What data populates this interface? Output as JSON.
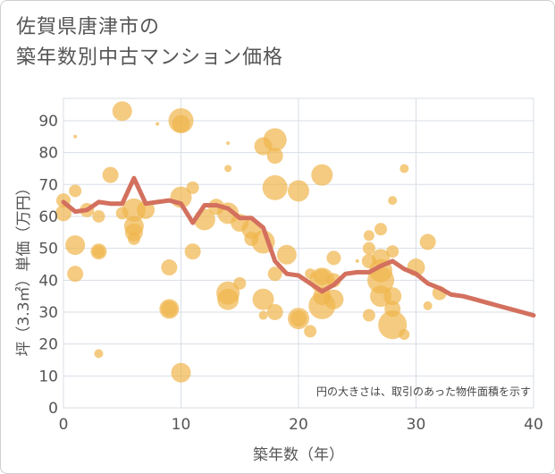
{
  "header": {
    "title_line1": "佐賀県唐津市の",
    "title_line2": "築年数別中古マンション価格"
  },
  "chart_data": {
    "type": "scatter",
    "title": "佐賀県唐津市の築年数別中古マンション価格",
    "xlabel": "築年数（年）",
    "ylabel": "坪（3.3㎡）単価（万円）",
    "xlim": [
      0,
      40
    ],
    "ylim": [
      0,
      97
    ],
    "xticks": [
      0,
      10,
      20,
      30,
      40
    ],
    "yticks": [
      0,
      10,
      20,
      30,
      40,
      50,
      60,
      70,
      80,
      90
    ],
    "grid": true,
    "note": "円の大きさは、取引のあった物件面積を示す",
    "colors": {
      "bubble": "#f0b54c",
      "trend": "#d3705e",
      "grid": "#d8dde6"
    },
    "bubbles": [
      {
        "x": 0,
        "y": 65,
        "s": 8
      },
      {
        "x": 0,
        "y": 61,
        "s": 9
      },
      {
        "x": 1,
        "y": 68,
        "s": 7
      },
      {
        "x": 1,
        "y": 51,
        "s": 11
      },
      {
        "x": 1,
        "y": 42,
        "s": 9
      },
      {
        "x": 1,
        "y": 85,
        "s": 2
      },
      {
        "x": 2,
        "y": 62,
        "s": 8
      },
      {
        "x": 3,
        "y": 60,
        "s": 7
      },
      {
        "x": 3,
        "y": 49,
        "s": 9
      },
      {
        "x": 3,
        "y": 49,
        "s": 7
      },
      {
        "x": 3,
        "y": 17,
        "s": 5
      },
      {
        "x": 4,
        "y": 73,
        "s": 9
      },
      {
        "x": 5,
        "y": 93,
        "s": 11
      },
      {
        "x": 5,
        "y": 61,
        "s": 7
      },
      {
        "x": 6,
        "y": 62,
        "s": 13
      },
      {
        "x": 6,
        "y": 57,
        "s": 11
      },
      {
        "x": 6,
        "y": 55,
        "s": 10
      },
      {
        "x": 6,
        "y": 53,
        "s": 7
      },
      {
        "x": 7,
        "y": 62,
        "s": 10
      },
      {
        "x": 8,
        "y": 89,
        "s": 2
      },
      {
        "x": 9,
        "y": 44,
        "s": 9
      },
      {
        "x": 9,
        "y": 31,
        "s": 11
      },
      {
        "x": 9,
        "y": 31,
        "s": 9
      },
      {
        "x": 10,
        "y": 90,
        "s": 14
      },
      {
        "x": 10,
        "y": 89,
        "s": 10
      },
      {
        "x": 10,
        "y": 66,
        "s": 12
      },
      {
        "x": 10,
        "y": 11,
        "s": 11
      },
      {
        "x": 11,
        "y": 69,
        "s": 7
      },
      {
        "x": 11,
        "y": 49,
        "s": 9
      },
      {
        "x": 12,
        "y": 59,
        "s": 12
      },
      {
        "x": 13,
        "y": 63,
        "s": 9
      },
      {
        "x": 14,
        "y": 83,
        "s": 2
      },
      {
        "x": 14,
        "y": 75,
        "s": 4
      },
      {
        "x": 14,
        "y": 61,
        "s": 12
      },
      {
        "x": 14,
        "y": 36,
        "s": 13
      },
      {
        "x": 14,
        "y": 34,
        "s": 12
      },
      {
        "x": 15,
        "y": 58,
        "s": 10
      },
      {
        "x": 15,
        "y": 39,
        "s": 7
      },
      {
        "x": 16,
        "y": 56,
        "s": 11
      },
      {
        "x": 16,
        "y": 53,
        "s": 8
      },
      {
        "x": 17,
        "y": 82,
        "s": 10
      },
      {
        "x": 17,
        "y": 52,
        "s": 13
      },
      {
        "x": 17,
        "y": 34,
        "s": 12
      },
      {
        "x": 17,
        "y": 29,
        "s": 5
      },
      {
        "x": 18,
        "y": 84,
        "s": 13
      },
      {
        "x": 18,
        "y": 79,
        "s": 9
      },
      {
        "x": 18,
        "y": 69,
        "s": 14
      },
      {
        "x": 18,
        "y": 42,
        "s": 8
      },
      {
        "x": 18,
        "y": 30,
        "s": 9
      },
      {
        "x": 19,
        "y": 48,
        "s": 11
      },
      {
        "x": 20,
        "y": 68,
        "s": 12
      },
      {
        "x": 20,
        "y": 28,
        "s": 12
      },
      {
        "x": 20,
        "y": 28,
        "s": 9
      },
      {
        "x": 21,
        "y": 42,
        "s": 6
      },
      {
        "x": 21,
        "y": 24,
        "s": 7
      },
      {
        "x": 22,
        "y": 73,
        "s": 12
      },
      {
        "x": 22,
        "y": 41,
        "s": 9
      },
      {
        "x": 22,
        "y": 40,
        "s": 14
      },
      {
        "x": 22,
        "y": 35,
        "s": 10
      },
      {
        "x": 22,
        "y": 32,
        "s": 15
      },
      {
        "x": 23,
        "y": 47,
        "s": 8
      },
      {
        "x": 23,
        "y": 40,
        "s": 8
      },
      {
        "x": 23,
        "y": 34,
        "s": 11
      },
      {
        "x": 25,
        "y": 46,
        "s": 2
      },
      {
        "x": 26,
        "y": 54,
        "s": 6
      },
      {
        "x": 26,
        "y": 50,
        "s": 7
      },
      {
        "x": 26,
        "y": 46,
        "s": 8
      },
      {
        "x": 26,
        "y": 29,
        "s": 7
      },
      {
        "x": 27,
        "y": 56,
        "s": 7
      },
      {
        "x": 27,
        "y": 47,
        "s": 10
      },
      {
        "x": 27,
        "y": 43,
        "s": 13
      },
      {
        "x": 27,
        "y": 40,
        "s": 15
      },
      {
        "x": 27,
        "y": 35,
        "s": 12
      },
      {
        "x": 28,
        "y": 65,
        "s": 5
      },
      {
        "x": 28,
        "y": 49,
        "s": 7
      },
      {
        "x": 28,
        "y": 35,
        "s": 10
      },
      {
        "x": 28,
        "y": 31,
        "s": 9
      },
      {
        "x": 28,
        "y": 26,
        "s": 16
      },
      {
        "x": 29,
        "y": 75,
        "s": 5
      },
      {
        "x": 29,
        "y": 23,
        "s": 6
      },
      {
        "x": 30,
        "y": 44,
        "s": 10
      },
      {
        "x": 31,
        "y": 52,
        "s": 9
      },
      {
        "x": 31,
        "y": 32,
        "s": 5
      },
      {
        "x": 32,
        "y": 36,
        "s": 8
      }
    ],
    "trend": {
      "x": [
        0,
        1,
        2,
        3,
        4,
        5,
        6,
        7,
        8,
        9,
        10,
        11,
        12,
        13,
        14,
        15,
        16,
        17,
        18,
        19,
        20,
        21,
        22,
        23,
        24,
        25,
        26,
        27,
        28,
        29,
        30,
        31,
        32,
        33,
        34,
        35,
        36,
        37,
        38,
        39,
        40
      ],
      "y": [
        64.5,
        61.5,
        62,
        64.5,
        64,
        64,
        72,
        64,
        64.5,
        65,
        64,
        58,
        63.5,
        63.5,
        62.5,
        59.5,
        59.5,
        56.5,
        46,
        42,
        41.5,
        39,
        36.5,
        38.5,
        42,
        42.5,
        42.5,
        44.5,
        46,
        43.5,
        42,
        39,
        37.5,
        35.5,
        35,
        34,
        33,
        32,
        31,
        30,
        29
      ]
    }
  }
}
